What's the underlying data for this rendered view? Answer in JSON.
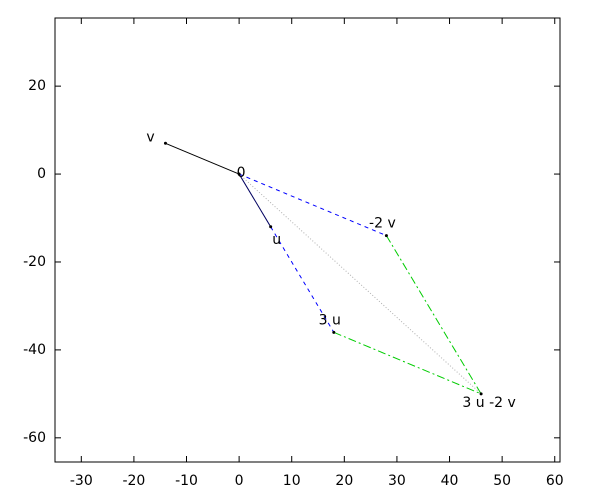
{
  "chart_data": {
    "type": "vector",
    "xlim": [
      -35,
      61
    ],
    "ylim": [
      -65.5,
      35.5
    ],
    "xticks": [
      -30,
      -20,
      -10,
      0,
      10,
      20,
      30,
      40,
      50,
      60
    ],
    "yticks": [
      -60,
      -40,
      -20,
      0,
      20
    ],
    "points": [
      {
        "label": "0",
        "x": 0,
        "y": 0
      },
      {
        "label": "v",
        "x": -14,
        "y": 7
      },
      {
        "label": "u",
        "x": 6,
        "y": -12
      },
      {
        "label": "-2 v",
        "x": 28,
        "y": -14
      },
      {
        "label": "3 u",
        "x": 18,
        "y": -36
      },
      {
        "label": "3 u -2 v",
        "x": 46,
        "y": -50
      }
    ],
    "segments": [
      {
        "from": 0,
        "to": 1,
        "color": "#000000",
        "style": "solid"
      },
      {
        "from": 0,
        "to": 2,
        "color": "#000060",
        "style": "solid"
      },
      {
        "from": 0,
        "to": 3,
        "color": "#0000ff",
        "style": "dashed"
      },
      {
        "from": 2,
        "to": 4,
        "color": "#0000ff",
        "style": "dashed"
      },
      {
        "from": 3,
        "to": 5,
        "color": "#00cc00",
        "style": "dashdot"
      },
      {
        "from": 4,
        "to": 5,
        "color": "#00cc00",
        "style": "dashdot"
      },
      {
        "from": 0,
        "to": 5,
        "color": "#b0b0b0",
        "style": "dotted"
      }
    ]
  }
}
